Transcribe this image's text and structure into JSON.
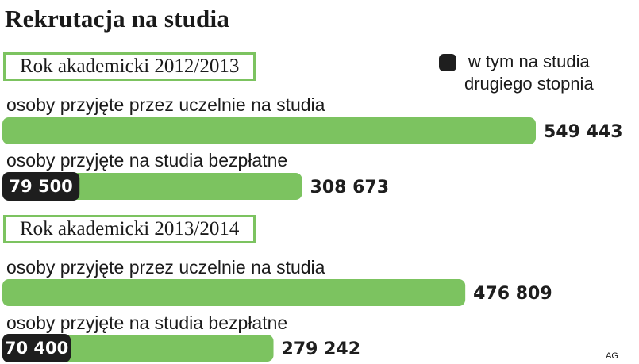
{
  "chart_data": {
    "type": "bar",
    "title": "Rekrutacja na studia",
    "legend": {
      "label_line1": "w tym na studia",
      "label_line2": "drugiego stopnia",
      "color": "#1e1e1e",
      "position": "top-right"
    },
    "colors": {
      "total": "#7cc360",
      "second_degree": "#1e1e1e",
      "box_border": "#7cc360"
    },
    "units": "osoby",
    "value_max": 549443,
    "sections": [
      {
        "year": "Rok akademicki 2012/2013",
        "rows": [
          {
            "label": "osoby przyjęte przez uczelnie na studia",
            "value": 549443,
            "value_label": "549 443",
            "second_degree": null,
            "second_degree_label": null
          },
          {
            "label": "osoby przyjęte na studia bezpłatne",
            "value": 308673,
            "value_label": "308 673",
            "second_degree": 79500,
            "second_degree_label": "79 500"
          }
        ]
      },
      {
        "year": "Rok akademicki 2013/2014",
        "rows": [
          {
            "label": "osoby przyjęte przez uczelnie na studia",
            "value": 476809,
            "value_label": "476 809",
            "second_degree": null,
            "second_degree_label": null
          },
          {
            "label": "osoby przyjęte na studia bezpłatne",
            "value": 279242,
            "value_label": "279 242",
            "second_degree": 70400,
            "second_degree_label": "70 400"
          }
        ]
      }
    ]
  },
  "credit": "AG"
}
